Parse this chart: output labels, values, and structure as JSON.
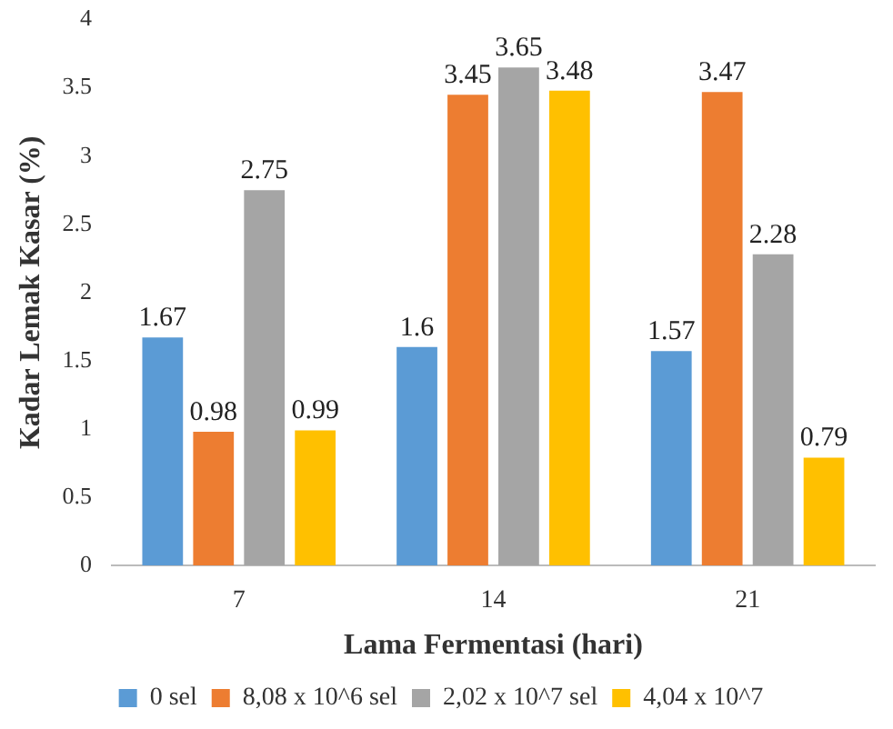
{
  "chart_data": {
    "type": "bar",
    "xlabel": "Lama Fermentasi (hari)",
    "ylabel": "Kadar Lemak Kasar (%)",
    "categories": [
      "7",
      "14",
      "21"
    ],
    "series": [
      {
        "name": "0 sel",
        "color": "#5b9bd5",
        "values": [
          1.67,
          1.6,
          1.57
        ]
      },
      {
        "name": "8,08 x 10^6 sel",
        "color": "#ed7d31",
        "values": [
          0.98,
          3.45,
          3.47
        ]
      },
      {
        "name": "2,02 x 10^7 sel",
        "color": "#a5a5a5",
        "values": [
          2.75,
          3.65,
          2.28
        ]
      },
      {
        "name": "4,04 x 10^7",
        "color": "#ffc000",
        "values": [
          0.99,
          3.48,
          0.79
        ]
      }
    ],
    "ylim": [
      0,
      4
    ],
    "yticks": [
      0,
      0.5,
      1,
      1.5,
      2,
      2.5,
      3,
      3.5,
      4
    ],
    "grid": false,
    "legend": "bottom",
    "data_labels": true
  }
}
